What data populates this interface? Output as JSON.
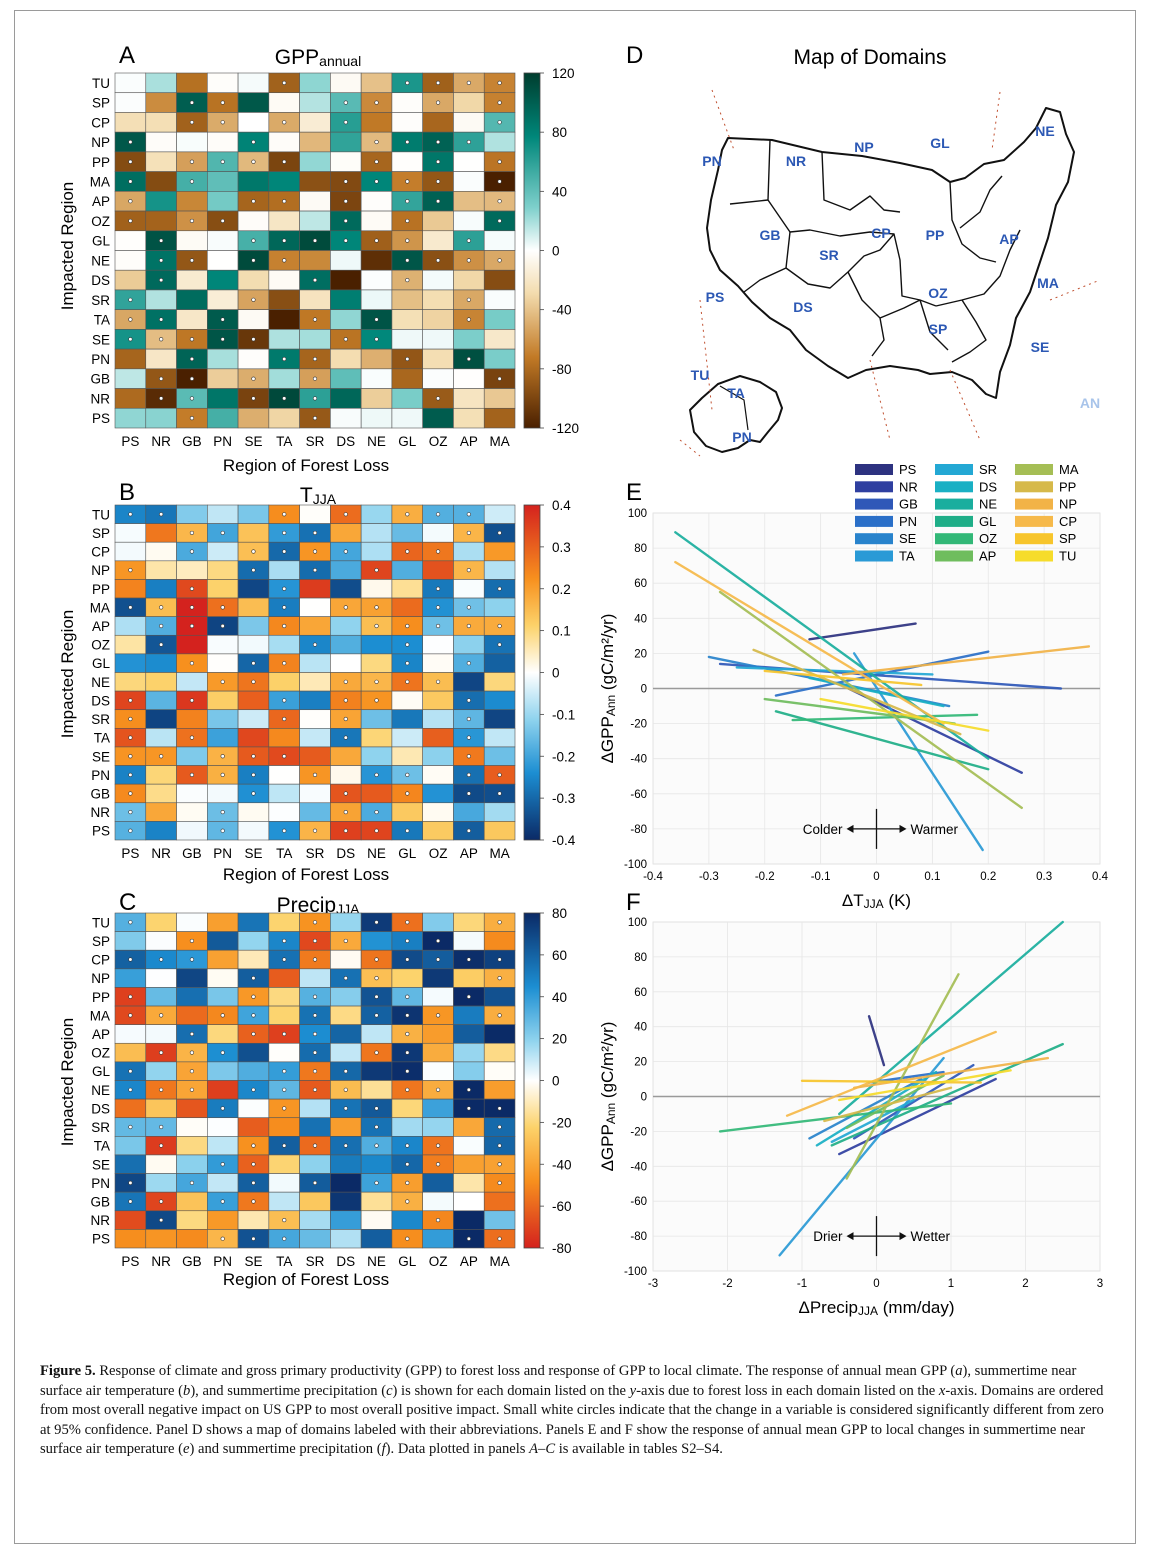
{
  "regions": [
    "PS",
    "NR",
    "GB",
    "PN",
    "SE",
    "TA",
    "SR",
    "DS",
    "NE",
    "GL",
    "OZ",
    "AP",
    "MA"
  ],
  "impacted": [
    "TU",
    "SP",
    "CP",
    "NP",
    "PP",
    "MA",
    "AP",
    "OZ",
    "GL",
    "NE",
    "DS",
    "SR",
    "TA",
    "SE",
    "PN",
    "GB",
    "NR",
    "PS"
  ],
  "axis_x_label": "Region of Forest Loss",
  "axis_y_label": "Impacted Region",
  "panels": {
    "A": {
      "letter": "A",
      "title_main": "GPP",
      "title_sub": "annual",
      "cbar": [
        "120",
        "80",
        "40",
        "0",
        "-40",
        "-80",
        "-120"
      ]
    },
    "B": {
      "letter": "B",
      "title_main": "T",
      "title_sub": "JJA",
      "cbar": [
        "0.4",
        "0.3",
        "0.2",
        "0.1",
        "0",
        "-0.1",
        "-0.2",
        "-0.3",
        "-0.4"
      ]
    },
    "C": {
      "letter": "C",
      "title_main": "Precip",
      "title_sub": "JJA",
      "cbar": [
        "80",
        "60",
        "40",
        "20",
        "0",
        "-20",
        "-40",
        "-60",
        "-80"
      ]
    },
    "D": {
      "letter": "D",
      "title": "Map of Domains"
    },
    "E": {
      "letter": "E"
    },
    "F": {
      "letter": "F"
    }
  },
  "map_labels": [
    "PN",
    "NR",
    "NP",
    "GL",
    "NE",
    "GB",
    "PP",
    "AP",
    "CP",
    "SR",
    "MA",
    "PS",
    "OZ",
    "DS",
    "SP",
    "SE",
    "TU",
    "TA",
    "PN",
    "AN"
  ],
  "legend": {
    "col1": [
      "PS",
      "NR",
      "GB",
      "PN",
      "SE",
      "TA"
    ],
    "col2": [
      "SR",
      "DS",
      "NE",
      "GL",
      "OZ",
      "AP"
    ],
    "col3": [
      "MA",
      "PP",
      "NP",
      "CP",
      "SP",
      "TU"
    ],
    "colors1": [
      "#2d3280",
      "#2f3fa0",
      "#2f58b8",
      "#2a6fc8",
      "#2883cc",
      "#2a9ad6"
    ],
    "colors2": [
      "#23a8d4",
      "#19b0c4",
      "#1aae9e",
      "#1fae88",
      "#32b877",
      "#6fbd5e"
    ],
    "colors3": [
      "#a5be55",
      "#d6b94a",
      "#f2b347",
      "#f6b94a",
      "#f7c52c",
      "#f6dc2b"
    ]
  },
  "plotE": {
    "ylabel_pre": "ΔGPP",
    "ylabel_sub": "Ann",
    "ylabel_post": " (gC/m²/yr)",
    "xlabel_pre": "ΔT",
    "xlabel_sub": "JJA",
    "xlabel_post": " (K)",
    "left_arrow": "Colder",
    "right_arrow": "Warmer",
    "xticks": [
      "-0.4",
      "-0.3",
      "-0.2",
      "-0.1",
      "0",
      "0.1",
      "0.2",
      "0.3",
      "0.4"
    ],
    "yticks": [
      "100",
      "80",
      "60",
      "40",
      "20",
      "0",
      "-20",
      "-40",
      "-60",
      "-80",
      "-100"
    ]
  },
  "plotF": {
    "ylabel_pre": "ΔGPP",
    "ylabel_sub": "Ann",
    "ylabel_post": " (gC/m²/yr)",
    "xlabel_pre": "ΔPrecip",
    "xlabel_sub": "JJA",
    "xlabel_post": " (mm/day)",
    "left_arrow": "Drier",
    "right_arrow": "Wetter",
    "xticks": [
      "-3",
      "-2",
      "-1",
      "0",
      "1",
      "2",
      "3"
    ],
    "yticks": [
      "100",
      "80",
      "60",
      "40",
      "20",
      "0",
      "-20",
      "-40",
      "-60",
      "-80",
      "-100"
    ]
  },
  "chart_data": [
    {
      "type": "line",
      "xlim": [
        -0.4,
        0.4
      ],
      "ylim": [
        -100,
        100
      ],
      "series": [
        {
          "name": "PS",
          "color": "#2d3280",
          "points": [
            [
              -0.12,
              28
            ],
            [
              0.07,
              37
            ]
          ]
        },
        {
          "name": "NR",
          "color": "#2f3fa0",
          "points": [
            [
              -0.05,
              0
            ],
            [
              0.26,
              -48
            ]
          ]
        },
        {
          "name": "GB",
          "color": "#2f58b8",
          "points": [
            [
              -0.28,
              14
            ],
            [
              0.33,
              0
            ]
          ]
        },
        {
          "name": "PN",
          "color": "#2a6fc8",
          "points": [
            [
              -0.18,
              -4
            ],
            [
              0.2,
              21
            ]
          ]
        },
        {
          "name": "SE",
          "color": "#2883cc",
          "points": [
            [
              -0.3,
              18
            ],
            [
              0.13,
              -10
            ]
          ]
        },
        {
          "name": "TA",
          "color": "#2a9ad6",
          "points": [
            [
              -0.04,
              20
            ],
            [
              0.19,
              -92
            ]
          ]
        },
        {
          "name": "SR",
          "color": "#23a8d4",
          "points": [
            [
              -0.25,
              12
            ],
            [
              0.1,
              8
            ]
          ]
        },
        {
          "name": "DS",
          "color": "#19b0c4",
          "points": [
            [
              -0.12,
              6
            ],
            [
              0.12,
              -10
            ]
          ]
        },
        {
          "name": "NE",
          "color": "#1aae9e",
          "points": [
            [
              -0.36,
              89
            ],
            [
              0.2,
              -40
            ]
          ]
        },
        {
          "name": "GL",
          "color": "#1fae88",
          "points": [
            [
              -0.18,
              -13
            ],
            [
              0.2,
              -46
            ]
          ]
        },
        {
          "name": "OZ",
          "color": "#32b877",
          "points": [
            [
              -0.15,
              -18
            ],
            [
              0.18,
              -15
            ]
          ]
        },
        {
          "name": "AP",
          "color": "#6fbd5e",
          "points": [
            [
              -0.2,
              -6
            ],
            [
              0.14,
              -20
            ]
          ]
        },
        {
          "name": "MA",
          "color": "#a5be55",
          "points": [
            [
              -0.28,
              55
            ],
            [
              0.26,
              -68
            ]
          ]
        },
        {
          "name": "PP",
          "color": "#d6b94a",
          "points": [
            [
              -0.22,
              22
            ],
            [
              0.15,
              -26
            ]
          ]
        },
        {
          "name": "NP",
          "color": "#f2b347",
          "points": [
            [
              -0.06,
              8
            ],
            [
              0.38,
              24
            ]
          ]
        },
        {
          "name": "CP",
          "color": "#f6b94a",
          "points": [
            [
              -0.36,
              72
            ],
            [
              0.12,
              -20
            ]
          ]
        },
        {
          "name": "SP",
          "color": "#f7c52c",
          "points": [
            [
              -0.2,
              10
            ],
            [
              0.08,
              2
            ]
          ]
        },
        {
          "name": "TU",
          "color": "#f6dc2b",
          "points": [
            [
              -0.1,
              -6
            ],
            [
              0.2,
              -24
            ]
          ]
        }
      ]
    },
    {
      "type": "line",
      "xlim": [
        -3,
        3
      ],
      "ylim": [
        -100,
        100
      ],
      "series": [
        {
          "name": "PS",
          "color": "#2d3280",
          "points": [
            [
              -0.1,
              46
            ],
            [
              0.1,
              18
            ]
          ]
        },
        {
          "name": "NR",
          "color": "#2f3fa0",
          "points": [
            [
              -0.5,
              -33
            ],
            [
              1.6,
              10
            ]
          ]
        },
        {
          "name": "GB",
          "color": "#2f58b8",
          "points": [
            [
              -0.3,
              -24
            ],
            [
              1.3,
              18
            ]
          ]
        },
        {
          "name": "PN",
          "color": "#2a6fc8",
          "points": [
            [
              -0.1,
              8
            ],
            [
              0.9,
              14
            ]
          ]
        },
        {
          "name": "SE",
          "color": "#2883cc",
          "points": [
            [
              -0.9,
              -24
            ],
            [
              0.6,
              10
            ]
          ]
        },
        {
          "name": "TA",
          "color": "#2a9ad6",
          "points": [
            [
              -1.3,
              -91
            ],
            [
              0.9,
              22
            ]
          ]
        },
        {
          "name": "SR",
          "color": "#23a8d4",
          "points": [
            [
              -0.6,
              -26
            ],
            [
              0.5,
              -2
            ]
          ]
        },
        {
          "name": "DS",
          "color": "#19b0c4",
          "points": [
            [
              -0.8,
              -28
            ],
            [
              0.8,
              14
            ]
          ]
        },
        {
          "name": "NE",
          "color": "#1aae9e",
          "points": [
            [
              -0.5,
              -10
            ],
            [
              2.5,
              100
            ]
          ]
        },
        {
          "name": "GL",
          "color": "#1fae88",
          "points": [
            [
              -0.6,
              -28
            ],
            [
              2.5,
              30
            ]
          ]
        },
        {
          "name": "OZ",
          "color": "#32b877",
          "points": [
            [
              -2.1,
              -20
            ],
            [
              1.0,
              -4
            ]
          ]
        },
        {
          "name": "AP",
          "color": "#6fbd5e",
          "points": [
            [
              -0.4,
              -18
            ],
            [
              0.9,
              12
            ]
          ]
        },
        {
          "name": "MA",
          "color": "#a5be55",
          "points": [
            [
              -0.4,
              -47
            ],
            [
              1.1,
              70
            ]
          ]
        },
        {
          "name": "PP",
          "color": "#d6b94a",
          "points": [
            [
              -0.7,
              -14
            ],
            [
              1.0,
              5
            ]
          ]
        },
        {
          "name": "NP",
          "color": "#f2b347",
          "points": [
            [
              -0.3,
              5
            ],
            [
              2.3,
              22
            ]
          ]
        },
        {
          "name": "CP",
          "color": "#f6b94a",
          "points": [
            [
              -1.2,
              -11
            ],
            [
              1.6,
              37
            ]
          ]
        },
        {
          "name": "SP",
          "color": "#f7c52c",
          "points": [
            [
              -1.0,
              9
            ],
            [
              1.4,
              8
            ]
          ]
        },
        {
          "name": "TU",
          "color": "#f6dc2b",
          "points": [
            [
              -0.5,
              -2
            ],
            [
              1.8,
              15
            ]
          ]
        }
      ]
    }
  ],
  "caption": {
    "fig": "Figure 5.",
    "p1": " Response of climate and gross primary productivity (GPP) to forest loss and response of GPP to local climate. The response of annual mean GPP (",
    "i1": "a",
    "p2": "), summertime near surface air temperature (",
    "i2": "b",
    "p3": "), and summertime precipitation (",
    "i3": "c",
    "p4": ") is shown for each domain listed on the ",
    "i4": "y",
    "p5": "-axis due to forest loss in each domain listed on the ",
    "i5": "x",
    "p6": "-axis. Domains are ordered from most overall negative impact on US GPP to most overall positive impact. Small white circles indicate that the change in a variable is considered significantly different from zero at 95% confidence. Panel D shows a map of domains labeled with their abbreviations. Panels E and F show the response of annual mean GPP to local changes in summertime near surface air temperature (",
    "i6": "e",
    "p7": ") and summertime precipitation (",
    "i7": "f",
    "p8": "). Data plotted in panels ",
    "i8": "A–C",
    "p9": " is available in tables S2–S4."
  }
}
